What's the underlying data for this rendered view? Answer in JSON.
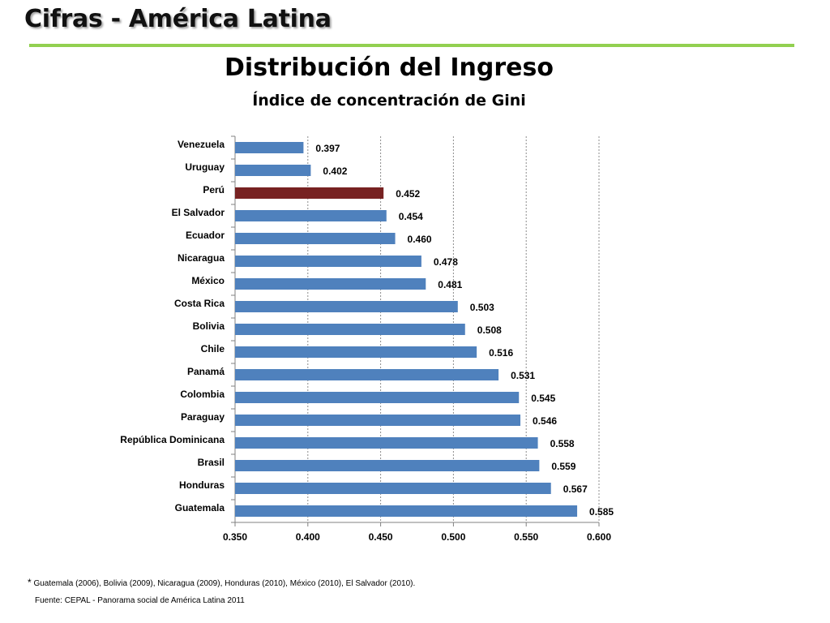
{
  "slide": {
    "heading": "Cifras - América Latina",
    "accent_color": "#92d050",
    "footnote_marker": "*",
    "footnote": "Guatemala (2006), Bolivia (2009), Nicaragua (2009), Honduras (2010), México (2010), El Salvador (2010).",
    "source": "Fuente: CEPAL - Panorama social de América Latina 2011"
  },
  "chart_data": {
    "type": "bar",
    "orientation": "horizontal",
    "title": "Distribución del Ingreso",
    "subtitle": "Índice de concentración de Gini",
    "categories": [
      "Venezuela",
      "Uruguay",
      "Perú",
      "El Salvador",
      "Ecuador",
      "Nicaragua",
      "México",
      "Costa Rica",
      "Bolivia",
      "Chile",
      "Panamá",
      "Colombia",
      "Paraguay",
      "República Dominicana",
      "Brasil",
      "Honduras",
      "Guatemala"
    ],
    "values": [
      0.397,
      0.402,
      0.452,
      0.454,
      0.46,
      0.478,
      0.481,
      0.503,
      0.508,
      0.516,
      0.531,
      0.545,
      0.546,
      0.558,
      0.559,
      0.567,
      0.585
    ],
    "value_labels": [
      "0.397",
      "0.402",
      "0.452",
      "0.454",
      "0.460",
      "0.478",
      "0.481",
      "0.503",
      "0.508",
      "0.516",
      "0.531",
      "0.545",
      "0.546",
      "0.558",
      "0.559",
      "0.567",
      "0.585"
    ],
    "xlim": [
      0.35,
      0.6
    ],
    "xticks": [
      "0.350",
      "0.400",
      "0.450",
      "0.500",
      "0.550",
      "0.600"
    ],
    "xtick_values": [
      0.35,
      0.4,
      0.45,
      0.5,
      0.55,
      0.6
    ],
    "bar_color": "#4f81bd",
    "highlight_category": "Perú",
    "highlight_color": "#772222",
    "grid": "vertical dashed"
  }
}
